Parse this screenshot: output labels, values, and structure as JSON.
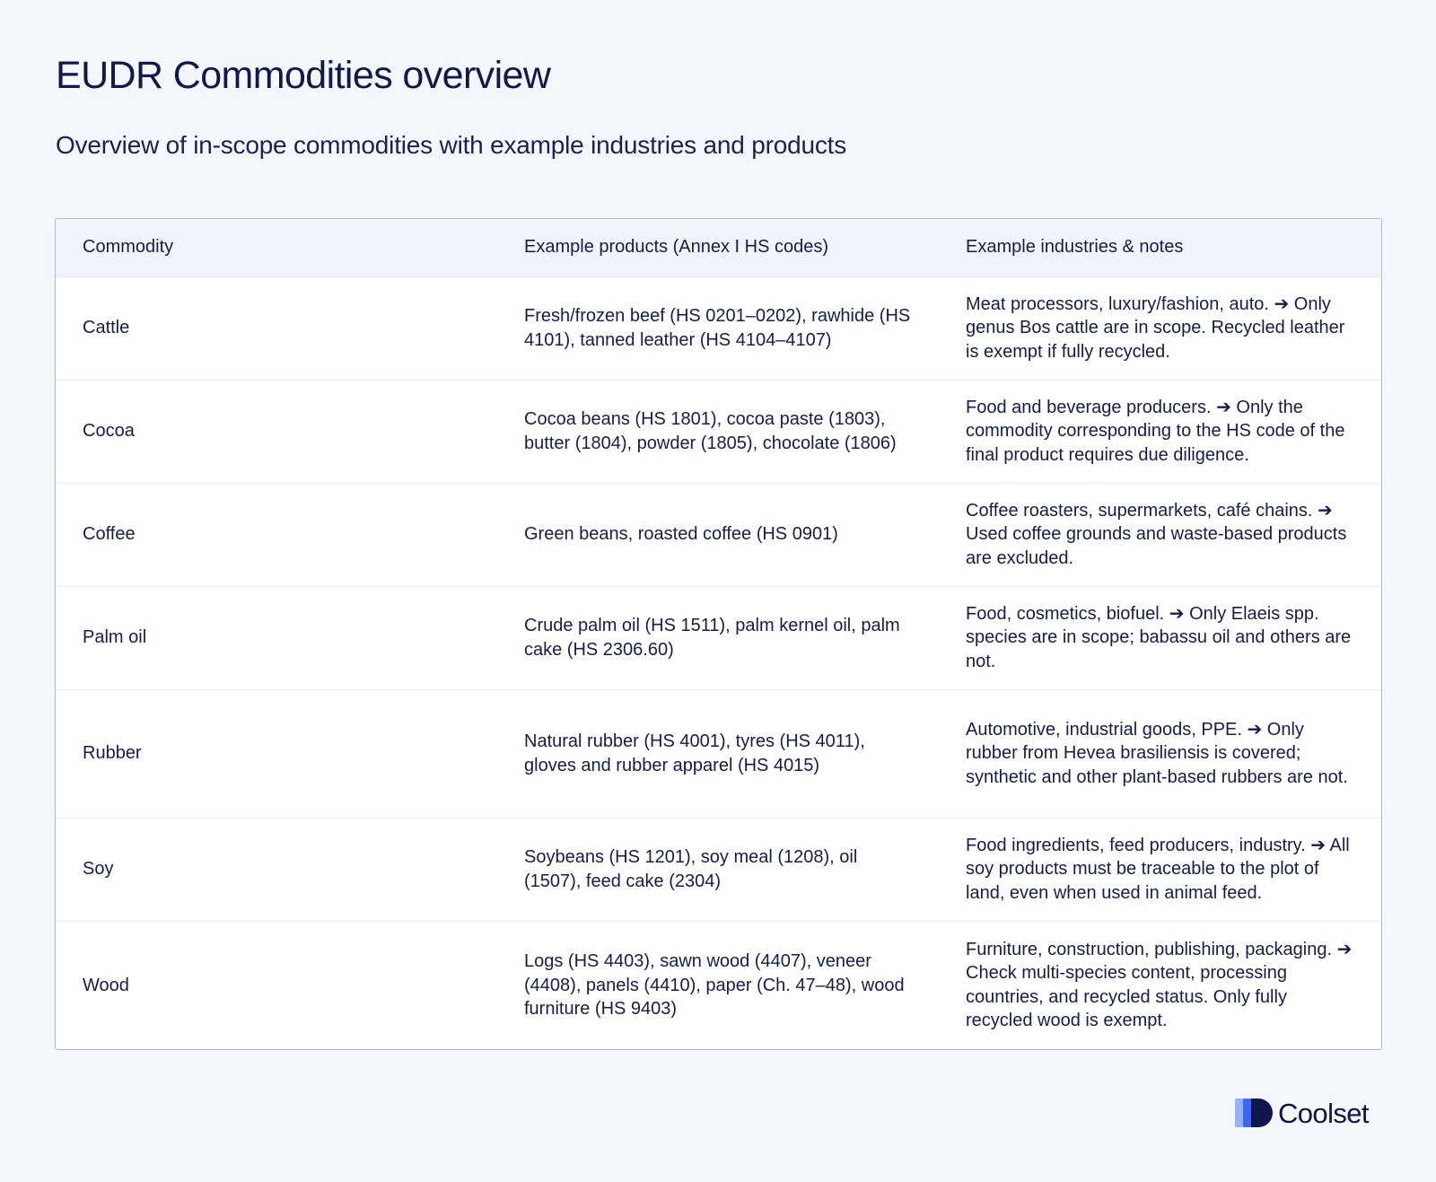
{
  "title": "EUDR Commodities overview",
  "subtitle": "Overview of in-scope commodities with example industries and products",
  "table": {
    "headers": [
      "Commodity",
      "Example products (Annex I HS codes)",
      "Example industries & notes"
    ],
    "rows": [
      {
        "commodity": "Cattle",
        "products": "Fresh/frozen beef (HS 0201–0202), rawhide (HS 4101), tanned leather (HS 4104–4107)",
        "notes": "Meat processors, luxury/fashion, auto. ➔ Only genus Bos cattle are in scope. Recycled leather is exempt if fully recycled."
      },
      {
        "commodity": "Cocoa",
        "products": "Cocoa beans (HS 1801), cocoa paste (1803), butter (1804), powder (1805), chocolate (1806)",
        "notes": "Food and beverage producers. ➔ Only the commodity corresponding to the HS code of the final product requires due diligence."
      },
      {
        "commodity": "Coffee",
        "products": "Green beans, roasted coffee (HS 0901)",
        "notes": "Coffee roasters, supermarkets, café chains. ➔ Used coffee grounds and waste-based products are excluded."
      },
      {
        "commodity": "Palm oil",
        "products": "Crude palm oil (HS 1511), palm kernel oil, palm cake (HS 2306.60)",
        "notes": "Food, cosmetics, biofuel. ➔ Only Elaeis spp. species are in scope; babassu oil and others are not."
      },
      {
        "commodity": "Rubber",
        "products": "Natural rubber (HS 4001), tyres (HS 4011), gloves and rubber apparel (HS 4015)",
        "notes": "Automotive, industrial goods, PPE. ➔ Only rubber from Hevea brasiliensis is covered; synthetic and other plant-based rubbers are not."
      },
      {
        "commodity": "Soy",
        "products": "Soybeans (HS 1201), soy meal (1208), oil (1507), feed cake (2304)",
        "notes": "Food ingredients, feed producers, industry. ➔ All soy products must be traceable to the plot of land, even when used in animal feed."
      },
      {
        "commodity": "Wood",
        "products": "Logs (HS 4403), sawn wood (4407), veneer (4408), panels (4410), paper (Ch. 47–48), wood furniture (HS 9403)",
        "notes": "Furniture, construction, publishing, packaging. ➔ Check multi-species content, processing countries, and recycled status. Only fully recycled wood is exempt."
      }
    ]
  },
  "brand": {
    "name": "Coolset",
    "icon": "coolset-logo-icon"
  },
  "colors": {
    "background": "#f4f7fc",
    "text": "#141a45",
    "table_border": "#a9b8ea",
    "header_row": "#f1f4fb",
    "logo_light": "#8fb4ff",
    "logo_mid": "#3d67f2",
    "logo_dark": "#10154a"
  }
}
